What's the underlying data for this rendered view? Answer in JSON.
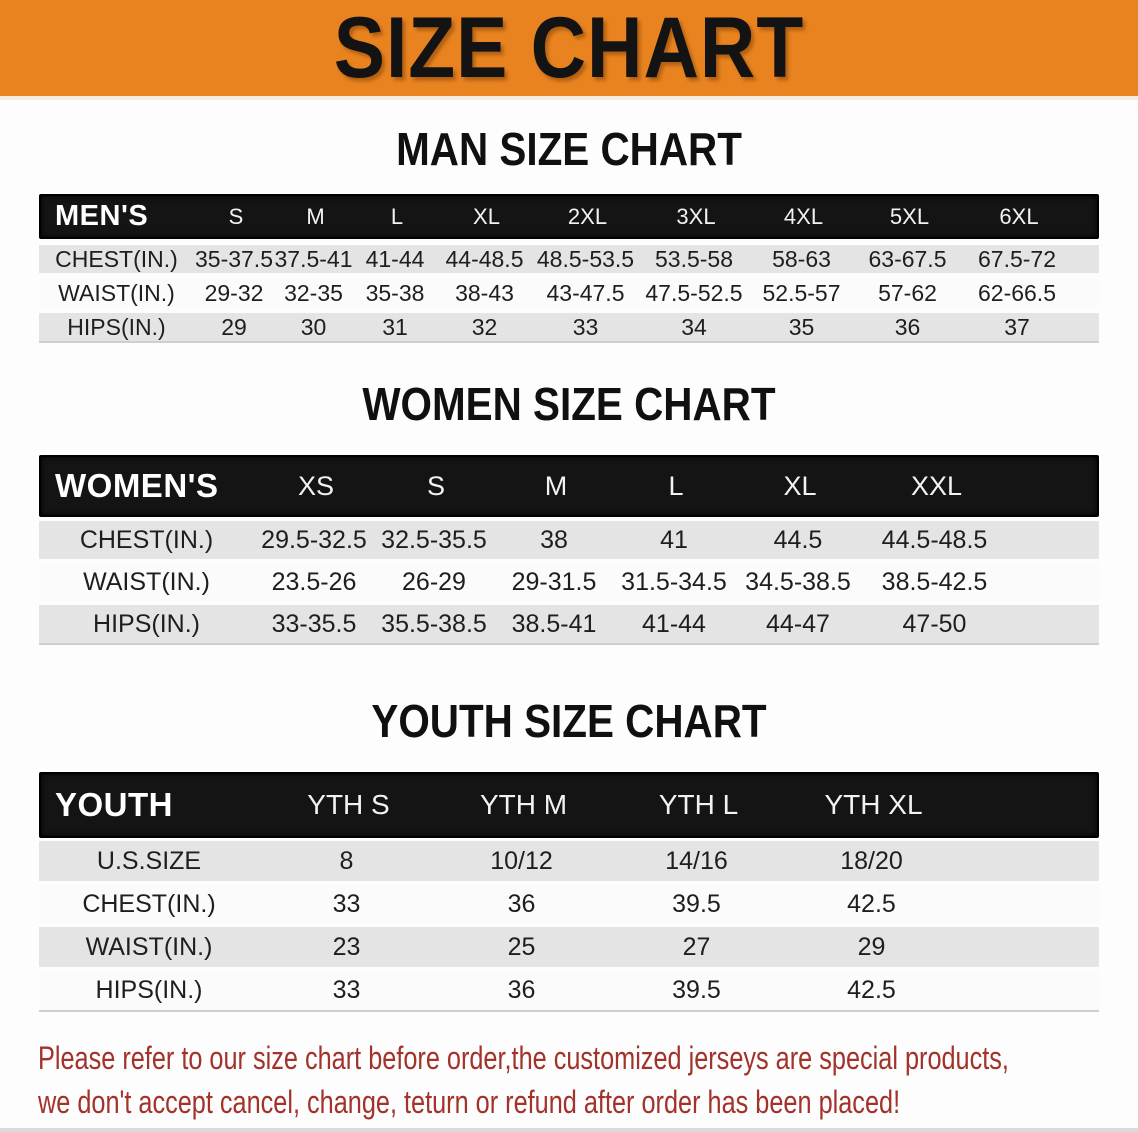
{
  "banner": {
    "title": "SIZE CHART",
    "bg_color": "#E8831F",
    "text_color": "#131313"
  },
  "sections": {
    "men": {
      "heading": "MAN SIZE CHART",
      "corner": "MEN'S",
      "columns": [
        "S",
        "M",
        "L",
        "XL",
        "2XL",
        "3XL",
        "4XL",
        "5XL",
        "6XL"
      ],
      "rows": [
        {
          "label": "CHEST(IN.)",
          "values": [
            "35-37.5",
            "37.5-41",
            "41-44",
            "44-48.5",
            "48.5-53.5",
            "53.5-58",
            "58-63",
            "63-67.5",
            "67.5-72"
          ]
        },
        {
          "label": "WAIST(IN.)",
          "values": [
            "29-32",
            "32-35",
            "35-38",
            "38-43",
            "43-47.5",
            "47.5-52.5",
            "52.5-57",
            "57-62",
            "62-66.5"
          ]
        },
        {
          "label": "HIPS(IN.)",
          "values": [
            "29",
            "30",
            "31",
            "32",
            "33",
            "34",
            "35",
            "36",
            "37"
          ]
        }
      ]
    },
    "women": {
      "heading": "WOMEN SIZE CHART",
      "corner": "WOMEN'S",
      "columns": [
        "XS",
        "S",
        "M",
        "L",
        "XL",
        "XXL"
      ],
      "rows": [
        {
          "label": "CHEST(IN.)",
          "values": [
            "29.5-32.5",
            "32.5-35.5",
            "38",
            "41",
            "44.5",
            "44.5-48.5"
          ]
        },
        {
          "label": "WAIST(IN.)",
          "values": [
            "23.5-26",
            "26-29",
            "29-31.5",
            "31.5-34.5",
            "34.5-38.5",
            "38.5-42.5"
          ]
        },
        {
          "label": "HIPS(IN.)",
          "values": [
            "33-35.5",
            "35.5-38.5",
            "38.5-41",
            "41-44",
            "44-47",
            "47-50"
          ]
        }
      ]
    },
    "youth": {
      "heading": "YOUTH SIZE CHART",
      "corner": "YOUTH",
      "columns": [
        "YTH S",
        "YTH M",
        "YTH L",
        "YTH XL"
      ],
      "rows": [
        {
          "label": "U.S.SIZE",
          "values": [
            "8",
            "10/12",
            "14/16",
            "18/20"
          ]
        },
        {
          "label": "CHEST(IN.)",
          "values": [
            "33",
            "36",
            "39.5",
            "42.5"
          ]
        },
        {
          "label": "WAIST(IN.)",
          "values": [
            "23",
            "25",
            "27",
            "29"
          ]
        },
        {
          "label": "HIPS(IN.)",
          "values": [
            "33",
            "36",
            "39.5",
            "42.5"
          ]
        }
      ]
    }
  },
  "table_style": {
    "header_bg": "#141414",
    "row_gray": "#E4E4E4",
    "row_white": "#FBFBFB"
  },
  "disclaimer": {
    "line1": "Please refer to our size chart before order,the customized jerseys are special products,",
    "line2": "we don't accept cancel, change, teturn or refund after order has been placed!",
    "color": "#A2322A"
  }
}
